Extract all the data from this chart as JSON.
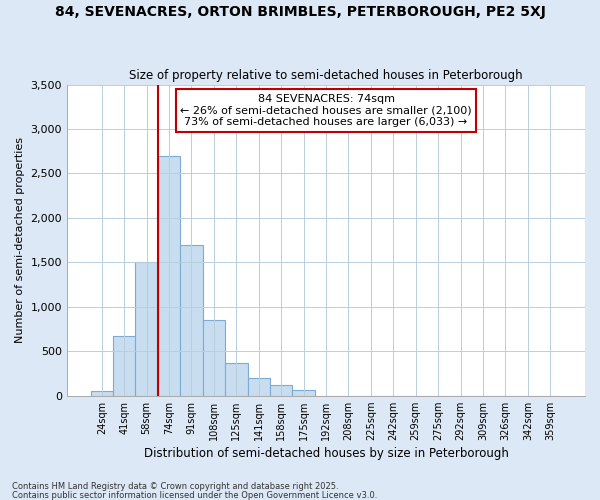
{
  "title1": "84, SEVENACRES, ORTON BRIMBLES, PETERBOROUGH, PE2 5XJ",
  "title2": "Size of property relative to semi-detached houses in Peterborough",
  "xlabel": "Distribution of semi-detached houses by size in Peterborough",
  "ylabel": "Number of semi-detached properties",
  "categories": [
    "24sqm",
    "41sqm",
    "58sqm",
    "74sqm",
    "91sqm",
    "108sqm",
    "125sqm",
    "141sqm",
    "158sqm",
    "175sqm",
    "192sqm",
    "208sqm",
    "225sqm",
    "242sqm",
    "259sqm",
    "275sqm",
    "292sqm",
    "309sqm",
    "326sqm",
    "342sqm",
    "359sqm"
  ],
  "values": [
    50,
    670,
    1500,
    2700,
    1700,
    850,
    370,
    200,
    120,
    60,
    0,
    0,
    0,
    0,
    0,
    0,
    0,
    0,
    0,
    0,
    0
  ],
  "redline_index": 3,
  "highlight_bar_color": "#c00000",
  "normal_bar_color": "#c8ddf0",
  "bar_edge_color": "#7badd4",
  "annotation_box_color": "#c00000",
  "pct_smaller": 26,
  "pct_larger": 73,
  "n_smaller": 2100,
  "n_larger": 6033,
  "ylim": [
    0,
    3500
  ],
  "yticks": [
    0,
    500,
    1000,
    1500,
    2000,
    2500,
    3000,
    3500
  ],
  "footnote1": "Contains HM Land Registry data © Crown copyright and database right 2025.",
  "footnote2": "Contains public sector information licensed under the Open Government Licence v3.0.",
  "bg_color": "#ffffff",
  "plot_bg_color": "#ffffff",
  "outer_bg_color": "#dce8f5",
  "grid_color": "#b8cfe0"
}
